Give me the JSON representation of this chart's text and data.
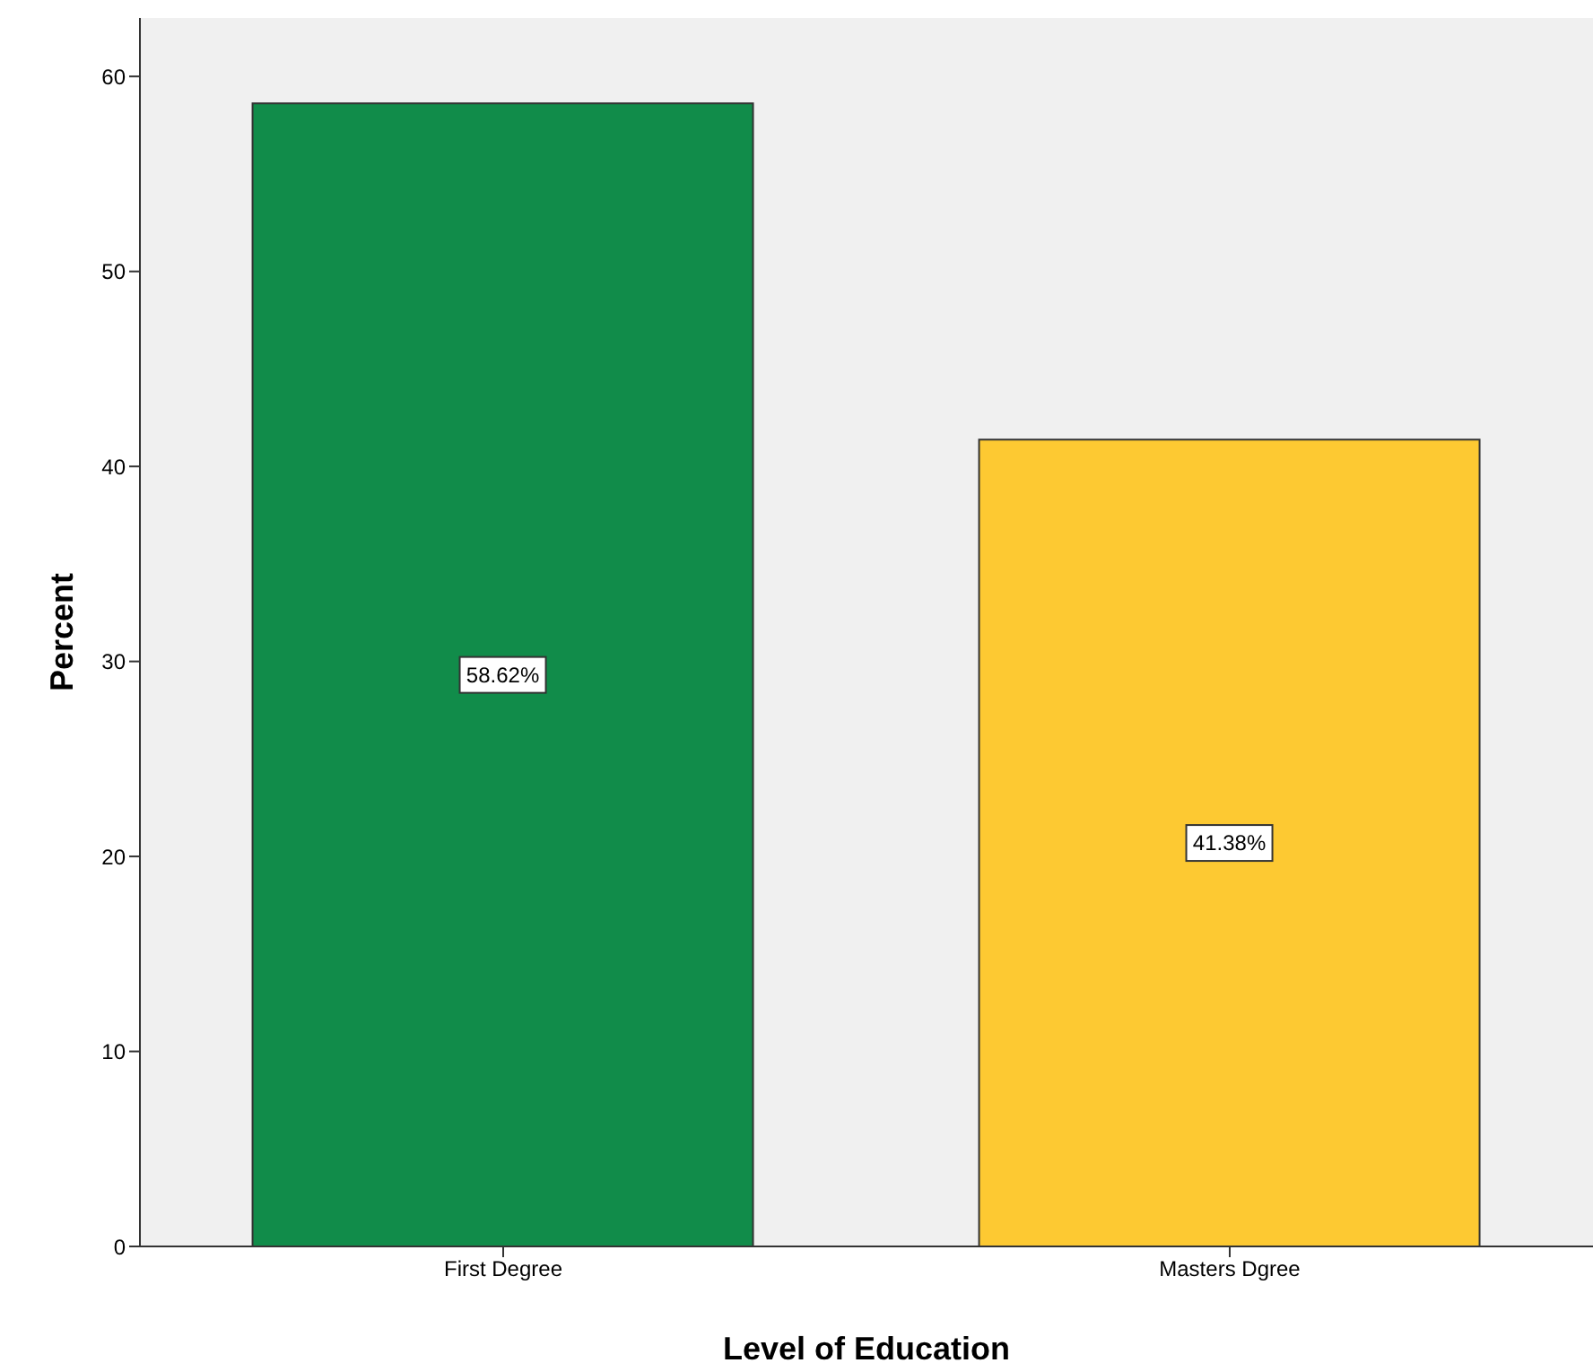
{
  "chart_data": {
    "type": "bar",
    "xlabel": "Level of Education",
    "ylabel": "Percent",
    "categories": [
      "First Degree",
      "Masters Dgree"
    ],
    "values": [
      58.62,
      41.38
    ],
    "colors": [
      "#118c4a",
      "#fdc932"
    ],
    "value_labels": [
      "58.62%",
      "41.38%"
    ],
    "ylim": [
      0,
      63
    ],
    "yticks": [
      0,
      10,
      20,
      30,
      40,
      50,
      60
    ],
    "grid": false
  }
}
